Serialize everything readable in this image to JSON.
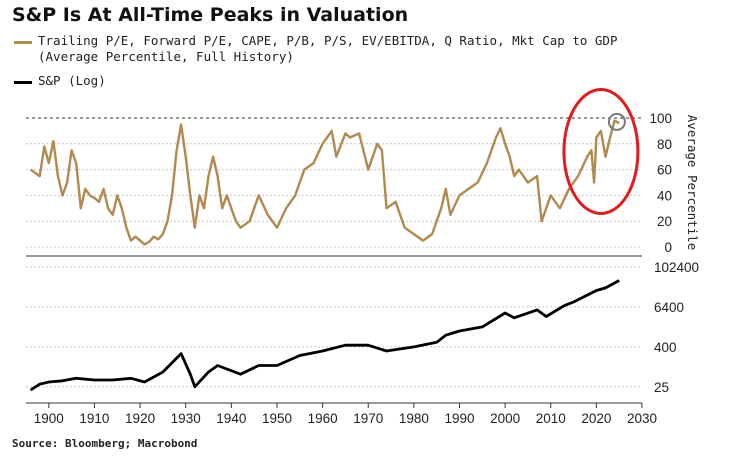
{
  "title": "S&P Is At All-Time Peaks in Valuation",
  "source": "Source: Bloomberg; Macrobond",
  "colors": {
    "valuation": "#b08a4e",
    "sp": "#000000",
    "highlight": "#e01c1c"
  },
  "chart_data": [
    {
      "type": "line",
      "legend": [
        "Trailing P/E, Forward P/E, CAPE, P/B, P/S, EV/EBITDA, Q Ratio, Mkt Cap to GDP",
        "(Average Percentile, Full History)"
      ],
      "ylabel": "Average Percentile",
      "ylim": [
        0,
        100
      ],
      "yticks": [
        "0",
        "20",
        "40",
        "60",
        "80",
        "100"
      ],
      "reference_line": 100,
      "grid": true,
      "series": [
        {
          "name": "Trailing P/E, Forward P/E, CAPE, P/B, P/S, EV/EBITDA, Q Ratio, Mkt Cap to GDP",
          "x": [
            1896,
            1898,
            1899,
            1900,
            1901,
            1902,
            1903,
            1904,
            1905,
            1906,
            1907,
            1908,
            1909,
            1910,
            1911,
            1912,
            1913,
            1914,
            1915,
            1916,
            1917,
            1918,
            1919,
            1920,
            1921,
            1922,
            1923,
            1924,
            1925,
            1926,
            1927,
            1928,
            1929,
            1930,
            1931,
            1932,
            1933,
            1934,
            1935,
            1936,
            1937,
            1938,
            1939,
            1940,
            1941,
            1942,
            1944,
            1946,
            1948,
            1950,
            1952,
            1954,
            1956,
            1958,
            1960,
            1962,
            1963,
            1965,
            1966,
            1968,
            1970,
            1972,
            1973,
            1974,
            1976,
            1978,
            1980,
            1982,
            1984,
            1986,
            1987,
            1988,
            1990,
            1992,
            1994,
            1996,
            1998,
            1999,
            2000,
            2001,
            2002,
            2003,
            2005,
            2007,
            2008,
            2009,
            2010,
            2012,
            2014,
            2016,
            2018,
            2018.9,
            2019.5,
            2020,
            2021,
            2022,
            2023,
            2024,
            2025
          ],
          "values": [
            60,
            55,
            78,
            65,
            82,
            55,
            40,
            50,
            75,
            65,
            30,
            45,
            40,
            38,
            35,
            45,
            30,
            25,
            40,
            30,
            15,
            5,
            8,
            5,
            2,
            4,
            8,
            6,
            10,
            20,
            40,
            75,
            95,
            70,
            40,
            15,
            40,
            30,
            55,
            70,
            55,
            30,
            40,
            30,
            20,
            15,
            20,
            40,
            25,
            15,
            30,
            40,
            60,
            65,
            80,
            90,
            70,
            88,
            85,
            88,
            60,
            80,
            75,
            30,
            35,
            15,
            10,
            5,
            10,
            30,
            45,
            25,
            40,
            45,
            50,
            65,
            85,
            92,
            80,
            70,
            55,
            60,
            50,
            55,
            20,
            30,
            40,
            30,
            45,
            55,
            70,
            75,
            50,
            85,
            90,
            70,
            85,
            98,
            96
          ]
        }
      ]
    },
    {
      "type": "line",
      "legend": [
        "S&P (Log)"
      ],
      "yscale": "log",
      "ylim": [
        10,
        102400
      ],
      "yticks": [
        "25",
        "400",
        "6400",
        "102400"
      ],
      "xlim": [
        1895,
        2030
      ],
      "xticks": [
        "1900",
        "1910",
        "1920",
        "1930",
        "1940",
        "1950",
        "1960",
        "1970",
        "1980",
        "1990",
        "2000",
        "2010",
        "2020",
        "2030"
      ],
      "grid": true,
      "series": [
        {
          "name": "S&P (Log)",
          "x": [
            1896,
            1898,
            1900,
            1903,
            1906,
            1910,
            1914,
            1918,
            1921,
            1925,
            1929,
            1931,
            1932,
            1935,
            1937,
            1942,
            1946,
            1950,
            1955,
            1960,
            1965,
            1970,
            1974,
            1980,
            1985,
            1987,
            1990,
            1995,
            2000,
            2002,
            2007,
            2009,
            2013,
            2015,
            2020,
            2022,
            2025
          ],
          "values": [
            20,
            30,
            35,
            38,
            45,
            40,
            40,
            45,
            35,
            70,
            250,
            60,
            25,
            70,
            110,
            60,
            110,
            110,
            220,
            300,
            450,
            450,
            300,
            400,
            550,
            900,
            1200,
            1600,
            4200,
            3000,
            5200,
            3300,
            7000,
            9000,
            20000,
            24000,
            40000
          ]
        }
      ]
    }
  ]
}
